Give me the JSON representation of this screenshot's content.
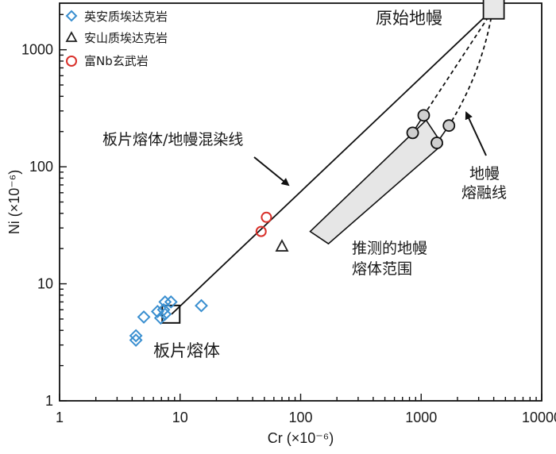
{
  "chart_data": {
    "type": "scatter",
    "x_scale": "log",
    "y_scale": "log",
    "xlim": [
      1,
      10000
    ],
    "ylim": [
      1,
      2500
    ],
    "xlabel": "Cr (×10⁻⁶)",
    "ylabel": "Ni (×10⁻⁶)",
    "x_ticks": [
      "1",
      "10",
      "100",
      "1000",
      "10000"
    ],
    "y_ticks": [
      "1",
      "10",
      "100",
      "1000"
    ],
    "grid": false,
    "legend_position": "top-left",
    "series": [
      {
        "name": "英安质埃达克岩",
        "marker": "diamond",
        "color": "#3a8fd0",
        "points": [
          [
            4.3,
            3.3
          ],
          [
            4.3,
            3.6
          ],
          [
            5.0,
            5.2
          ],
          [
            6.5,
            5.8
          ],
          [
            6.9,
            5.1
          ],
          [
            7.3,
            6.0
          ],
          [
            7.5,
            5.5
          ],
          [
            7.5,
            7.0
          ],
          [
            8.4,
            7.0
          ],
          [
            15.0,
            6.5
          ]
        ]
      },
      {
        "name": "安山质埃达克岩",
        "marker": "triangle",
        "color": "#222222",
        "points": [
          [
            70,
            21
          ]
        ]
      },
      {
        "name": "富Nb玄武岩",
        "marker": "circle",
        "color": "#d9312b",
        "points": [
          [
            47,
            28
          ],
          [
            52,
            37
          ]
        ]
      }
    ],
    "mixing_line": {
      "label": "板片熔体/地幔混染线",
      "from": [
        8.5,
        5.5
      ],
      "to": [
        3900,
        2200
      ]
    },
    "end_members": [
      {
        "label": "原始地幔",
        "x": 4000,
        "y": 2250
      },
      {
        "label": "板片熔体",
        "x": 8.4,
        "y": 5.5
      }
    ],
    "mantle_melt_lines": {
      "label": "地幔熔融线",
      "points": [
        [
          1050,
          275
        ],
        [
          850,
          195
        ],
        [
          1700,
          225
        ],
        [
          1350,
          160
        ]
      ]
    },
    "inferred_field": {
      "label": "推测的地幔熔体范围",
      "corners": [
        [
          1100,
          250
        ],
        [
          1500,
          155
        ],
        [
          170,
          22
        ],
        [
          120,
          28
        ]
      ]
    }
  }
}
